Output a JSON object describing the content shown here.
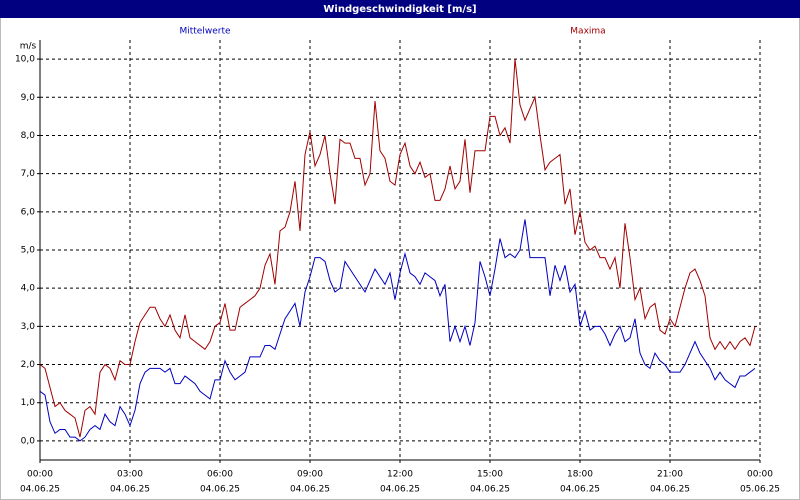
{
  "chart_data": {
    "type": "line",
    "title": "Windgeschwindigkeit [m/s]",
    "y_unit": "m/s",
    "x": [
      0,
      10,
      20,
      30,
      40,
      50,
      60,
      70,
      80,
      90,
      100,
      110,
      120,
      130,
      140,
      150,
      160,
      170,
      180,
      190,
      200,
      210,
      220,
      230,
      240,
      250,
      260,
      270,
      280,
      290,
      300,
      310,
      320,
      330,
      340,
      350,
      360,
      370,
      380,
      390,
      400,
      410,
      420,
      430,
      440,
      450,
      460,
      470,
      480,
      490,
      500,
      510,
      520,
      530,
      540,
      550,
      560,
      570,
      580,
      590,
      600,
      610,
      620,
      630,
      640,
      650,
      660,
      670,
      680,
      690,
      700,
      710,
      720,
      730,
      740,
      750,
      760,
      770,
      780,
      790,
      800,
      810,
      820,
      830,
      840,
      850,
      860,
      870,
      880,
      890,
      900,
      910,
      920,
      930,
      940,
      950,
      960,
      970,
      980,
      990,
      1000,
      1010,
      1020,
      1030,
      1040,
      1050,
      1060,
      1070,
      1080,
      1090,
      1100,
      1110,
      1120,
      1130,
      1140,
      1150,
      1160,
      1170,
      1180,
      1190,
      1200,
      1210,
      1220,
      1230,
      1240,
      1250,
      1260,
      1270,
      1280,
      1290,
      1300,
      1310,
      1320,
      1330,
      1340,
      1350,
      1360,
      1370,
      1380,
      1390,
      1400,
      1410,
      1420,
      1430
    ],
    "xlim": [
      0,
      1440
    ],
    "xticks": [
      {
        "value": 0,
        "label": "00:00"
      },
      {
        "value": 180,
        "label": "03:00"
      },
      {
        "value": 360,
        "label": "06:00"
      },
      {
        "value": 540,
        "label": "09:00"
      },
      {
        "value": 720,
        "label": "12:00"
      },
      {
        "value": 900,
        "label": "15:00"
      },
      {
        "value": 1080,
        "label": "18:00"
      },
      {
        "value": 1260,
        "label": "21:00"
      },
      {
        "value": 1440,
        "label": "00:00"
      }
    ],
    "xtick_dates": [
      "04.06.25",
      "04.06.25",
      "04.06.25",
      "04.06.25",
      "04.06.25",
      "04.06.25",
      "04.06.25",
      "04.06.25",
      "05.06.25"
    ],
    "ylim": [
      -0.5,
      10.5
    ],
    "yticks": [
      {
        "value": 0,
        "label": "0,0"
      },
      {
        "value": 1,
        "label": "1,0"
      },
      {
        "value": 2,
        "label": "2,0"
      },
      {
        "value": 3,
        "label": "3,0"
      },
      {
        "value": 4,
        "label": "4,0"
      },
      {
        "value": 5,
        "label": "5,0"
      },
      {
        "value": 6,
        "label": "6,0"
      },
      {
        "value": 7,
        "label": "7,0"
      },
      {
        "value": 8,
        "label": "8,0"
      },
      {
        "value": 9,
        "label": "9,0"
      },
      {
        "value": 10,
        "label": "10,0"
      }
    ],
    "grid": true,
    "series": [
      {
        "name": "Mittelwerte",
        "color": "#0000c0",
        "values": [
          1.3,
          1.2,
          0.5,
          0.2,
          0.3,
          0.3,
          0.1,
          0.1,
          0.0,
          0.1,
          0.3,
          0.4,
          0.3,
          0.7,
          0.5,
          0.4,
          0.9,
          0.7,
          0.4,
          0.8,
          1.5,
          1.8,
          1.9,
          1.9,
          1.9,
          1.8,
          1.9,
          1.5,
          1.5,
          1.7,
          1.6,
          1.5,
          1.3,
          1.2,
          1.1,
          1.6,
          1.6,
          2.1,
          1.8,
          1.6,
          1.7,
          1.8,
          2.2,
          2.2,
          2.2,
          2.5,
          2.5,
          2.4,
          2.8,
          3.2,
          3.4,
          3.6,
          3.0,
          3.9,
          4.3,
          4.8,
          4.8,
          4.7,
          4.2,
          3.9,
          4.0,
          4.7,
          4.5,
          4.3,
          4.1,
          3.9,
          4.2,
          4.5,
          4.3,
          4.1,
          4.4,
          3.7,
          4.4,
          4.9,
          4.4,
          4.3,
          4.1,
          4.4,
          4.3,
          4.2,
          3.8,
          4.1,
          2.6,
          3.0,
          2.6,
          3.0,
          2.5,
          3.1,
          4.7,
          4.3,
          3.8,
          4.5,
          5.3,
          4.8,
          4.9,
          4.8,
          5.0,
          5.8,
          4.8,
          4.8,
          4.8,
          4.8,
          3.8,
          4.6,
          4.2,
          4.6,
          3.9,
          4.1,
          3.0,
          3.4,
          2.9,
          3.0,
          3.0,
          2.8,
          2.5,
          2.8,
          3.0,
          2.6,
          2.7,
          3.2,
          2.3,
          2.0,
          1.9,
          2.3,
          2.1,
          2.0,
          1.8,
          1.8,
          1.8,
          2.0,
          2.3,
          2.6,
          2.3,
          2.1,
          1.9,
          1.6,
          1.8,
          1.6,
          1.5,
          1.4,
          1.7,
          1.7,
          1.8,
          1.9
        ]
      },
      {
        "name": "Maxima",
        "color": "#a00000",
        "values": [
          2.0,
          1.9,
          1.4,
          0.9,
          1.0,
          0.8,
          0.7,
          0.6,
          0.1,
          0.8,
          0.9,
          0.7,
          1.8,
          2.0,
          1.9,
          1.6,
          2.1,
          2.0,
          2.0,
          2.6,
          3.1,
          3.3,
          3.5,
          3.5,
          3.2,
          3.0,
          3.3,
          2.9,
          2.7,
          3.3,
          2.7,
          2.6,
          2.5,
          2.4,
          2.6,
          3.0,
          3.1,
          3.6,
          2.9,
          2.9,
          3.5,
          3.6,
          3.7,
          3.8,
          4.0,
          4.6,
          4.9,
          4.1,
          5.5,
          5.6,
          6.0,
          6.8,
          5.5,
          7.5,
          8.1,
          7.2,
          7.5,
          8.0,
          7.0,
          6.2,
          7.9,
          7.8,
          7.8,
          7.4,
          7.4,
          6.7,
          7.0,
          8.9,
          7.6,
          7.4,
          6.8,
          6.7,
          7.5,
          7.8,
          7.2,
          7.0,
          7.3,
          6.9,
          7.0,
          6.3,
          6.3,
          6.6,
          7.2,
          6.6,
          6.8,
          7.9,
          6.5,
          7.6,
          7.6,
          7.6,
          8.5,
          8.5,
          8.0,
          8.2,
          7.8,
          10.0,
          8.8,
          8.4,
          8.7,
          9.0,
          8.0,
          7.1,
          7.3,
          7.4,
          7.5,
          6.2,
          6.6,
          5.4,
          6.0,
          5.2,
          5.0,
          5.1,
          4.8,
          4.8,
          4.5,
          4.8,
          4.0,
          5.7,
          4.8,
          3.7,
          4.0,
          3.2,
          3.5,
          3.6,
          2.9,
          2.8,
          3.2,
          3.0,
          3.5,
          4.0,
          4.4,
          4.5,
          4.2,
          3.8,
          2.7,
          2.4,
          2.6,
          2.4,
          2.6,
          2.4,
          2.6,
          2.7,
          2.5,
          3.0
        ]
      }
    ]
  }
}
